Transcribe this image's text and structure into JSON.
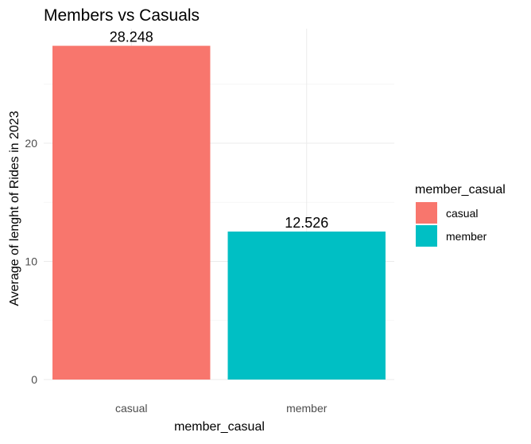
{
  "chart_data": {
    "type": "bar",
    "title": "Members vs Casuals",
    "xlabel": "member_casual",
    "ylabel": "Average of lenght of Rides in 2023",
    "categories": [
      "casual",
      "member"
    ],
    "values": [
      28.248,
      12.526
    ],
    "data_labels": [
      "28.248",
      "12.526"
    ],
    "colors": [
      "#F8766D",
      "#00BFC4"
    ],
    "ylim": [
      0,
      29.7
    ],
    "y_ticks": [
      0,
      10,
      20
    ],
    "y_tick_labels": [
      "0",
      "10",
      "20"
    ],
    "grid": true,
    "legend": {
      "title": "member_casual",
      "position": "right",
      "entries": [
        "casual",
        "member"
      ]
    }
  }
}
